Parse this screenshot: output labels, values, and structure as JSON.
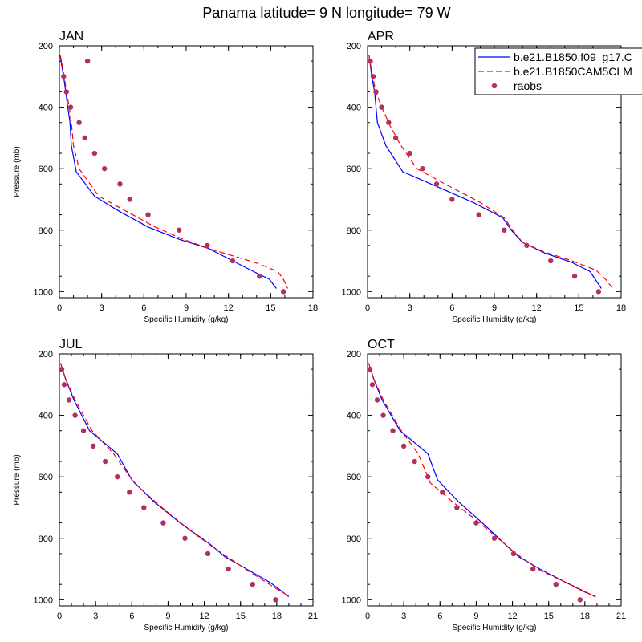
{
  "title": "Panama  latitude= 9 N longitude= 79 W",
  "legend": {
    "placement": "top-right",
    "entries": [
      {
        "label": "b.e21.B1850.f09_g17.C",
        "style": "solid",
        "color": "#0000ff"
      },
      {
        "label": "b.e21.B1850CAM5CLM",
        "style": "dashed",
        "color": "#ff0000"
      },
      {
        "label": "raobs",
        "style": "dots",
        "color": "#b03060"
      }
    ]
  },
  "chart_data": [
    {
      "type": "line",
      "panel_title": "JAN",
      "xlabel": "Specific Humidity (g/kg)",
      "ylabel": "Pressure (mb)",
      "xlim": [
        0,
        18
      ],
      "ylim": [
        200,
        1020
      ],
      "y_inverted": true,
      "xticks": [
        0,
        3,
        6,
        9,
        12,
        15,
        18
      ],
      "yticks": [
        200,
        400,
        600,
        800,
        1000
      ],
      "series": [
        {
          "name": "b.e21.B1850.f09_g17.C",
          "style": "solid",
          "color": "#0000ff",
          "points": [
            [
              0.05,
              230
            ],
            [
              0.15,
              260
            ],
            [
              0.3,
              300
            ],
            [
              0.45,
              350
            ],
            [
              0.6,
              400
            ],
            [
              0.75,
              450
            ],
            [
              0.85,
              525
            ],
            [
              1.2,
              610
            ],
            [
              2.5,
              690
            ],
            [
              4.3,
              740
            ],
            [
              6.3,
              790
            ],
            [
              8.5,
              830
            ],
            [
              10.6,
              860
            ],
            [
              12.3,
              900
            ],
            [
              13.8,
              935
            ],
            [
              14.9,
              960
            ],
            [
              15.4,
              990
            ]
          ]
        },
        {
          "name": "b.e21.B1850CAM5CLM",
          "style": "dashed",
          "color": "#ff0000",
          "points": [
            [
              0.05,
              230
            ],
            [
              0.2,
              260
            ],
            [
              0.35,
              300
            ],
            [
              0.5,
              350
            ],
            [
              0.7,
              400
            ],
            [
              0.85,
              450
            ],
            [
              1.0,
              525
            ],
            [
              1.4,
              600
            ],
            [
              2.8,
              690
            ],
            [
              4.8,
              740
            ],
            [
              6.8,
              790
            ],
            [
              8.8,
              830
            ],
            [
              10.6,
              860
            ],
            [
              12.4,
              885
            ],
            [
              14.2,
              910
            ],
            [
              15.5,
              935
            ],
            [
              15.9,
              960
            ],
            [
              16.2,
              990
            ]
          ]
        },
        {
          "name": "raobs",
          "style": "dots",
          "color": "#b03060",
          "points": [
            [
              2.0,
              250
            ],
            [
              0.3,
              300
            ],
            [
              0.5,
              350
            ],
            [
              0.8,
              400
            ],
            [
              1.4,
              450
            ],
            [
              1.8,
              500
            ],
            [
              2.5,
              550
            ],
            [
              3.2,
              600
            ],
            [
              4.3,
              650
            ],
            [
              5.0,
              700
            ],
            [
              6.3,
              750
            ],
            [
              8.5,
              800
            ],
            [
              10.5,
              850
            ],
            [
              12.3,
              900
            ],
            [
              14.2,
              950
            ],
            [
              15.9,
              1000
            ]
          ]
        }
      ]
    },
    {
      "type": "line",
      "panel_title": "APR",
      "xlabel": "Specific Humidity (g/kg)",
      "ylabel": "",
      "xlim": [
        0,
        18
      ],
      "ylim": [
        200,
        1020
      ],
      "y_inverted": true,
      "xticks": [
        0,
        3,
        6,
        9,
        12,
        15,
        18
      ],
      "yticks": [
        200,
        400,
        600,
        800,
        1000
      ],
      "series": [
        {
          "name": "b.e21.B1850.f09_g17.C",
          "style": "solid",
          "color": "#0000ff",
          "points": [
            [
              0.1,
              230
            ],
            [
              0.3,
              300
            ],
            [
              0.5,
              350
            ],
            [
              0.7,
              450
            ],
            [
              1.3,
              525
            ],
            [
              2.5,
              610
            ],
            [
              5.0,
              660
            ],
            [
              7.5,
              710
            ],
            [
              9.6,
              760
            ],
            [
              10.2,
              800
            ],
            [
              11.0,
              840
            ],
            [
              12.6,
              875
            ],
            [
              14.5,
              905
            ],
            [
              15.8,
              935
            ],
            [
              16.6,
              990
            ]
          ]
        },
        {
          "name": "b.e21.B1850CAM5CLM",
          "style": "dashed",
          "color": "#ff0000",
          "points": [
            [
              0.1,
              230
            ],
            [
              0.35,
              300
            ],
            [
              0.6,
              350
            ],
            [
              1.0,
              400
            ],
            [
              1.6,
              460
            ],
            [
              2.3,
              520
            ],
            [
              3.5,
              600
            ],
            [
              5.5,
              650
            ],
            [
              8.0,
              710
            ],
            [
              9.7,
              760
            ],
            [
              10.3,
              800
            ],
            [
              11.0,
              840
            ],
            [
              12.5,
              870
            ],
            [
              14.5,
              900
            ],
            [
              16.2,
              930
            ],
            [
              16.9,
              960
            ],
            [
              17.4,
              990
            ]
          ]
        },
        {
          "name": "raobs",
          "style": "dots",
          "color": "#b03060",
          "points": [
            [
              0.2,
              250
            ],
            [
              0.4,
              300
            ],
            [
              0.6,
              350
            ],
            [
              1.0,
              400
            ],
            [
              1.5,
              450
            ],
            [
              2.0,
              500
            ],
            [
              3.0,
              550
            ],
            [
              3.9,
              600
            ],
            [
              4.9,
              650
            ],
            [
              6.0,
              700
            ],
            [
              7.9,
              750
            ],
            [
              9.7,
              800
            ],
            [
              11.3,
              850
            ],
            [
              13.0,
              900
            ],
            [
              14.7,
              950
            ],
            [
              16.4,
              1000
            ]
          ]
        }
      ]
    },
    {
      "type": "line",
      "panel_title": "JUL",
      "xlabel": "Specific Humidity (g/kg)",
      "ylabel": "Pressure (mb)",
      "xlim": [
        0,
        21
      ],
      "ylim": [
        200,
        1020
      ],
      "y_inverted": true,
      "xticks": [
        0,
        3,
        6,
        9,
        12,
        15,
        18,
        21
      ],
      "yticks": [
        200,
        400,
        600,
        800,
        1000
      ],
      "series": [
        {
          "name": "b.e21.B1850.f09_g17.C",
          "style": "solid",
          "color": "#0000ff",
          "points": [
            [
              0.1,
              230
            ],
            [
              0.5,
              280
            ],
            [
              1.2,
              350
            ],
            [
              2.5,
              450
            ],
            [
              4.8,
              525
            ],
            [
              6.0,
              610
            ],
            [
              7.8,
              680
            ],
            [
              10.0,
              750
            ],
            [
              12.5,
              820
            ],
            [
              13.7,
              860
            ],
            [
              15.5,
              900
            ],
            [
              17.5,
              945
            ],
            [
              19.0,
              990
            ]
          ]
        },
        {
          "name": "b.e21.B1850CAM5CLM",
          "style": "dashed",
          "color": "#ff0000",
          "points": [
            [
              0.1,
              230
            ],
            [
              0.5,
              280
            ],
            [
              1.3,
              350
            ],
            [
              2.7,
              450
            ],
            [
              4.5,
              525
            ],
            [
              6.2,
              620
            ],
            [
              8.5,
              700
            ],
            [
              11.0,
              780
            ],
            [
              13.5,
              850
            ],
            [
              15.8,
              910
            ],
            [
              17.8,
              960
            ],
            [
              19.1,
              990
            ]
          ]
        },
        {
          "name": "raobs",
          "style": "dots",
          "color": "#b03060",
          "points": [
            [
              0.2,
              250
            ],
            [
              0.4,
              300
            ],
            [
              0.8,
              350
            ],
            [
              1.3,
              400
            ],
            [
              2.0,
              450
            ],
            [
              2.8,
              500
            ],
            [
              3.8,
              550
            ],
            [
              4.8,
              600
            ],
            [
              5.8,
              650
            ],
            [
              7.0,
              700
            ],
            [
              8.6,
              750
            ],
            [
              10.4,
              800
            ],
            [
              12.3,
              850
            ],
            [
              14.0,
              900
            ],
            [
              16.0,
              950
            ],
            [
              17.9,
              1000
            ]
          ]
        }
      ]
    },
    {
      "type": "line",
      "panel_title": "OCT",
      "xlabel": "Specific Humidity (g/kg)",
      "ylabel": "",
      "xlim": [
        0,
        21
      ],
      "ylim": [
        200,
        1020
      ],
      "y_inverted": true,
      "xticks": [
        0,
        3,
        6,
        9,
        12,
        15,
        18,
        21
      ],
      "yticks": [
        200,
        400,
        600,
        800,
        1000
      ],
      "series": [
        {
          "name": "b.e21.B1850.f09_g17.C",
          "style": "solid",
          "color": "#0000ff",
          "points": [
            [
              0.1,
              230
            ],
            [
              0.5,
              280
            ],
            [
              1.2,
              350
            ],
            [
              2.7,
              450
            ],
            [
              5.0,
              525
            ],
            [
              5.8,
              610
            ],
            [
              7.5,
              680
            ],
            [
              9.5,
              750
            ],
            [
              12.5,
              860
            ],
            [
              14.5,
              905
            ],
            [
              16.5,
              945
            ],
            [
              18.0,
              975
            ],
            [
              18.9,
              990
            ]
          ]
        },
        {
          "name": "b.e21.B1850CAM5CLM",
          "style": "dashed",
          "color": "#ff0000",
          "points": [
            [
              0.1,
              230
            ],
            [
              0.5,
              280
            ],
            [
              1.3,
              350
            ],
            [
              2.8,
              450
            ],
            [
              4.2,
              525
            ],
            [
              5.2,
              620
            ],
            [
              7.0,
              680
            ],
            [
              9.3,
              750
            ],
            [
              12.3,
              850
            ],
            [
              14.3,
              905
            ],
            [
              16.5,
              945
            ],
            [
              18.1,
              975
            ],
            [
              18.8,
              990
            ]
          ]
        },
        {
          "name": "raobs",
          "style": "dots",
          "color": "#b03060",
          "points": [
            [
              0.2,
              250
            ],
            [
              0.4,
              300
            ],
            [
              0.8,
              350
            ],
            [
              1.3,
              400
            ],
            [
              2.1,
              450
            ],
            [
              3.0,
              500
            ],
            [
              3.9,
              550
            ],
            [
              5.0,
              600
            ],
            [
              6.2,
              650
            ],
            [
              7.4,
              700
            ],
            [
              9.0,
              750
            ],
            [
              10.5,
              800
            ],
            [
              12.1,
              850
            ],
            [
              13.7,
              900
            ],
            [
              15.6,
              950
            ],
            [
              17.6,
              1000
            ]
          ]
        }
      ]
    }
  ]
}
